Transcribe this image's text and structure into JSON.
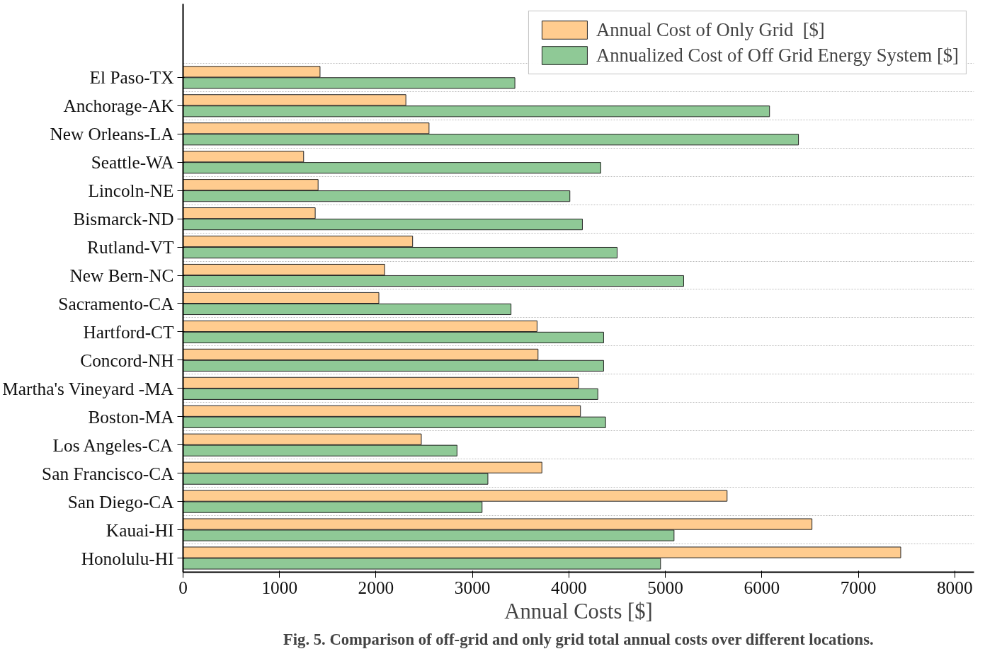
{
  "chart_data": {
    "type": "bar",
    "orientation": "horizontal",
    "xlabel": "Annual Costs [$]",
    "categories": [
      "El Paso-TX",
      "Anchorage-AK",
      "New Orleans-LA",
      "Seattle-WA",
      "Lincoln-NE",
      "Bismarck-ND",
      "Rutland-VT",
      "New Bern-NC",
      "Sacramento-CA",
      "Hartford-CT",
      "Concord-NH",
      "Martha's Vineyard -MA",
      "Boston-MA",
      "Los Angeles-CA",
      "San Francisco-CA",
      "San Diego-CA",
      "Kauai-HI",
      "Honolulu-HI"
    ],
    "series": [
      {
        "name": "Annual Cost of Only Grid  [$]",
        "color": "#ffcc8f",
        "values": [
          1420,
          2310,
          2550,
          1250,
          1400,
          1370,
          2380,
          2090,
          2030,
          3670,
          3680,
          4100,
          4120,
          2470,
          3720,
          5640,
          6520,
          7440
        ]
      },
      {
        "name": "Annualized Cost of Off Grid Energy System [$]",
        "color": "#8fc996",
        "values": [
          3440,
          6080,
          6380,
          4330,
          4010,
          4140,
          4500,
          5190,
          3400,
          4360,
          4360,
          4300,
          4380,
          2840,
          3160,
          3100,
          5090,
          4950
        ]
      }
    ],
    "xlim": [
      0,
      8200
    ],
    "xticks": [
      0,
      1000,
      2000,
      3000,
      4000,
      5000,
      6000,
      7000,
      8000
    ],
    "grid": "y",
    "legend": "top right",
    "annotations": [
      "Fig. 5. Comparison of off-grid and only grid total annual costs over different locations."
    ]
  }
}
